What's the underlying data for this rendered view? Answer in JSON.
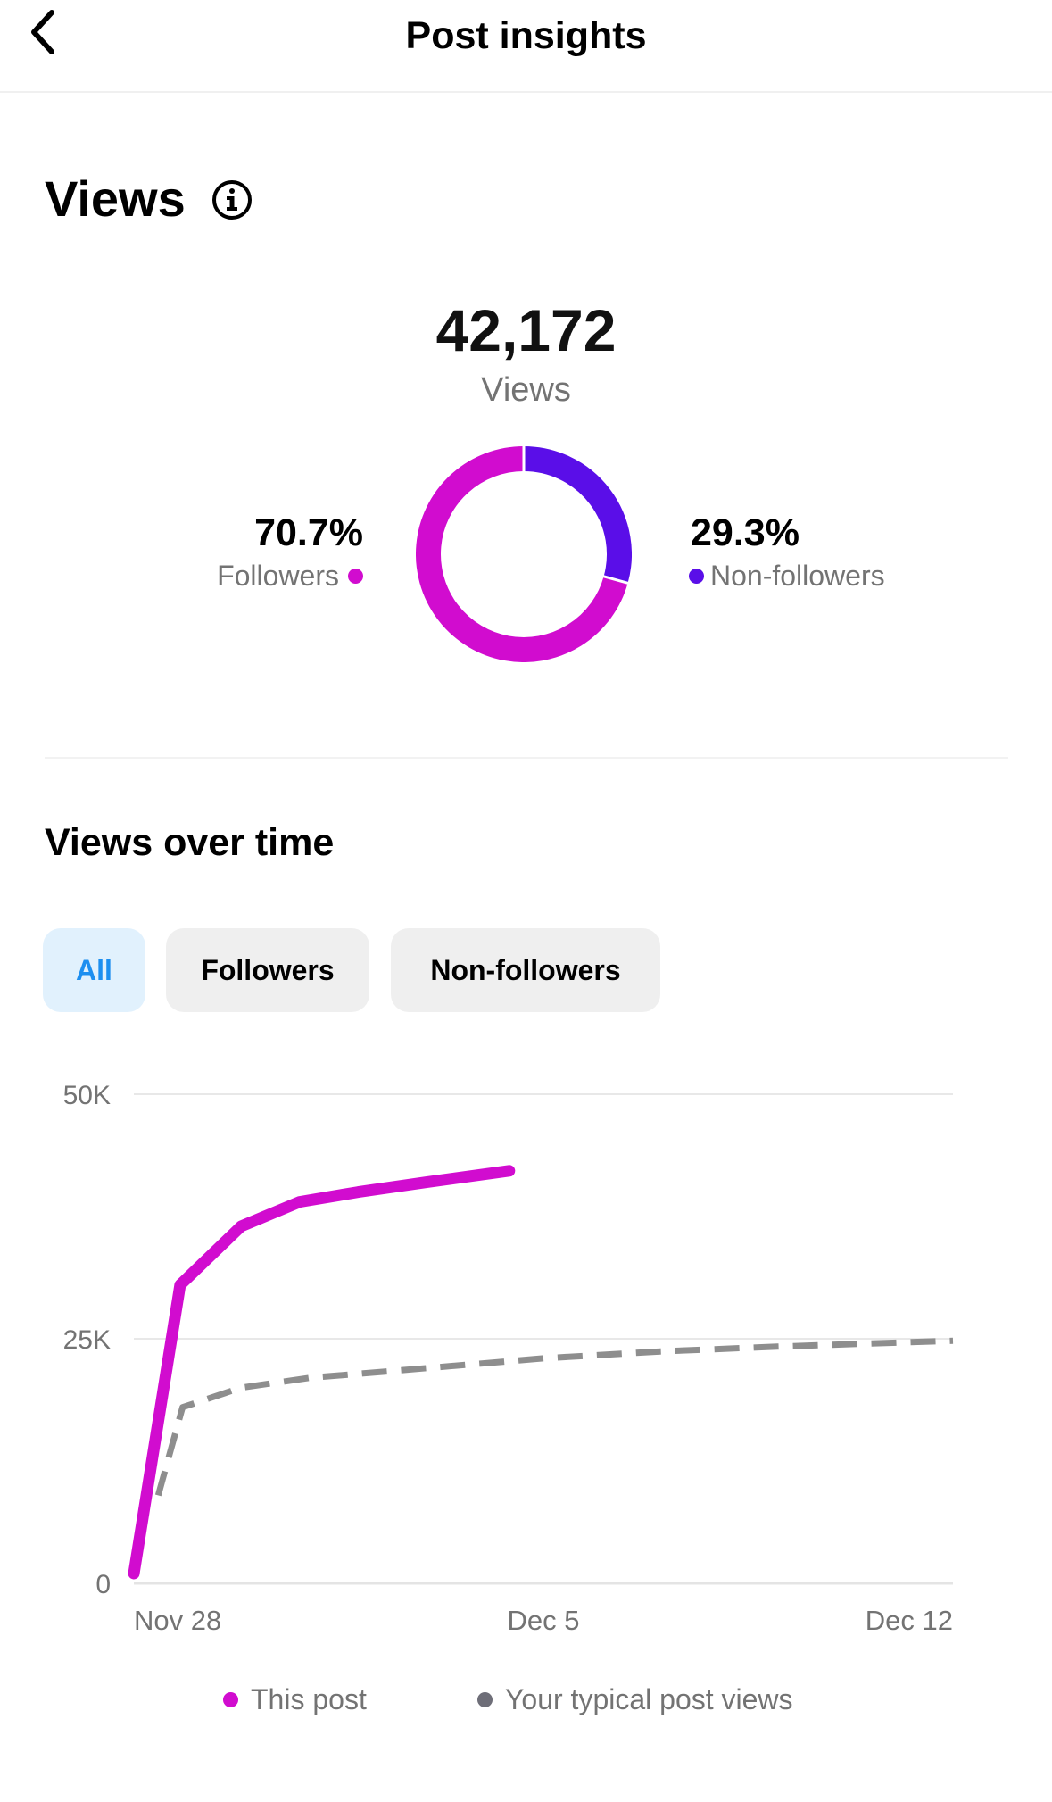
{
  "header": {
    "title": "Post insights",
    "back_icon": "chevron-left-icon"
  },
  "views": {
    "title": "Views",
    "info_icon": "info-circle-icon",
    "total": "42,172",
    "total_label": "Views",
    "followers_pct": "70.7%",
    "followers_label": "Followers",
    "non_followers_pct": "29.3%",
    "non_followers_label": "Non-followers",
    "colors": {
      "followers": "#d10ccf",
      "non_followers": "#5a0ee8"
    }
  },
  "views_over_time": {
    "title": "Views over time",
    "filters": [
      {
        "label": "All",
        "selected": true
      },
      {
        "label": "Followers",
        "selected": false
      },
      {
        "label": "Non-followers",
        "selected": false
      }
    ]
  },
  "chart_data": [
    {
      "type": "pie",
      "categories": [
        "Followers",
        "Non-followers"
      ],
      "values": [
        70.7,
        29.3
      ],
      "colors": [
        "#d10ccf",
        "#5a0ee8"
      ],
      "donut": true
    },
    {
      "type": "line",
      "x_ticks": [
        "Nov 28",
        "Dec 5",
        "Dec 12"
      ],
      "y_ticks": [
        "0",
        "25K",
        "50K"
      ],
      "xlim": [
        "2024-11-28",
        "2024-12-12"
      ],
      "ylim": [
        0,
        50000
      ],
      "grid": true,
      "legend_position": "bottom",
      "series": [
        {
          "name": "This post",
          "color": "#d10ccf",
          "style": "solid",
          "points": [
            {
              "x": "2024-11-28T00:00",
              "y": 1000
            },
            {
              "x": "2024-11-28T19:00",
              "y": 30500
            },
            {
              "x": "2024-11-29T20:00",
              "y": 36500
            },
            {
              "x": "2024-11-30T20:00",
              "y": 39000
            },
            {
              "x": "2024-12-01T20:00",
              "y": 40000
            },
            {
              "x": "2024-12-03T00:00",
              "y": 41000
            },
            {
              "x": "2024-12-04T10:00",
              "y": 42172
            }
          ]
        },
        {
          "name": "Your typical post views",
          "color": "#8e8e8e",
          "style": "dashed",
          "points": [
            {
              "x": "2024-11-28T10:00",
              "y": 9000
            },
            {
              "x": "2024-11-28T20:00",
              "y": 18000
            },
            {
              "x": "2024-11-29T20:00",
              "y": 20000
            },
            {
              "x": "2024-12-01T00:00",
              "y": 21000
            },
            {
              "x": "2024-12-03T00:00",
              "y": 22000
            },
            {
              "x": "2024-12-05T00:00",
              "y": 23000
            },
            {
              "x": "2024-12-07T00:00",
              "y": 23700
            },
            {
              "x": "2024-12-09T00:00",
              "y": 24200
            },
            {
              "x": "2024-12-12T00:00",
              "y": 24800
            }
          ]
        }
      ]
    }
  ]
}
